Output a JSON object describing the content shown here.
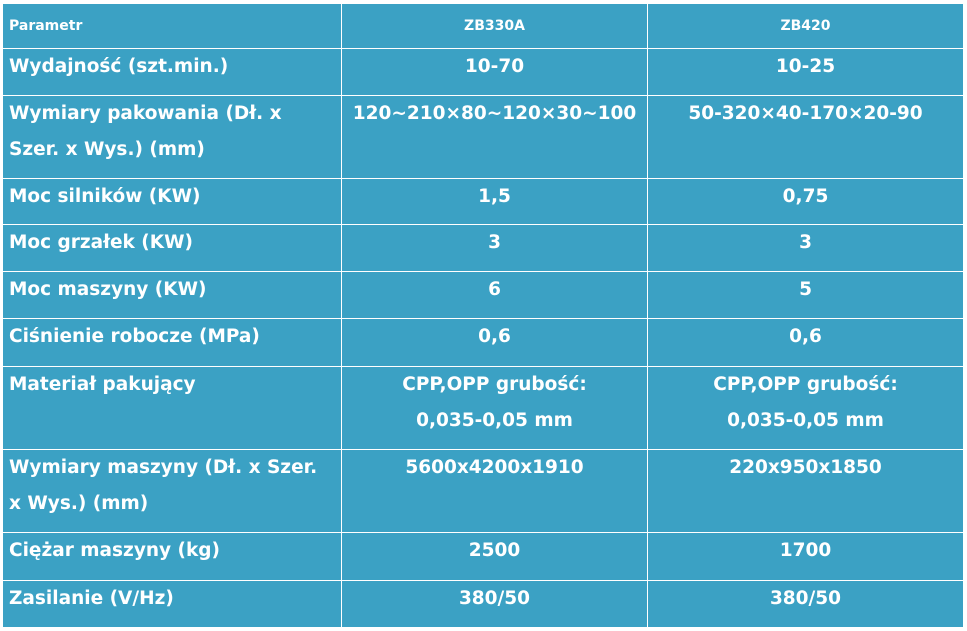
{
  "table": {
    "header": {
      "param": "Parametr",
      "model_a": "ZB330A",
      "model_b": "ZB420"
    },
    "rows": [
      {
        "label": "Wydajność (szt.min.)",
        "a": "10-70",
        "b": "10-25"
      },
      {
        "label": "Wymiary pakowania (Dł. x Szer. x Wys.) (mm)",
        "a": "120~210×80~120×30~100",
        "b": "50-320×40-170×20-90"
      },
      {
        "label": "Moc silników (KW)",
        "a": "1,5",
        "b": "0,75"
      },
      {
        "label": "Moc grzałek (KW)",
        "a": "3",
        "b": "3"
      },
      {
        "label": "Moc maszyny (KW)",
        "a": "6",
        "b": "5"
      },
      {
        "label": "Ciśnienie robocze (MPa)",
        "a": "0,6",
        "b": "0,6"
      },
      {
        "label": "Materiał pakujący",
        "a": "CPP,OPP grubość: 0,035-0,05 mm",
        "b": "CPP,OPP grubość: 0,035-0,05 mm"
      },
      {
        "label": "Wymiary maszyny (Dł. x Szer. x Wys.) (mm)",
        "a": "5600x4200x1910",
        "b": "220x950x1850"
      },
      {
        "label": "Ciężar maszyny (kg)",
        "a": "2500",
        "b": "1700"
      },
      {
        "label": "Zasilanie (V/Hz)",
        "a": "380/50",
        "b": "380/50"
      }
    ]
  },
  "colors": {
    "cell_background": "#3ba1c4",
    "text": "#ffffff",
    "border": "#ffffff"
  }
}
